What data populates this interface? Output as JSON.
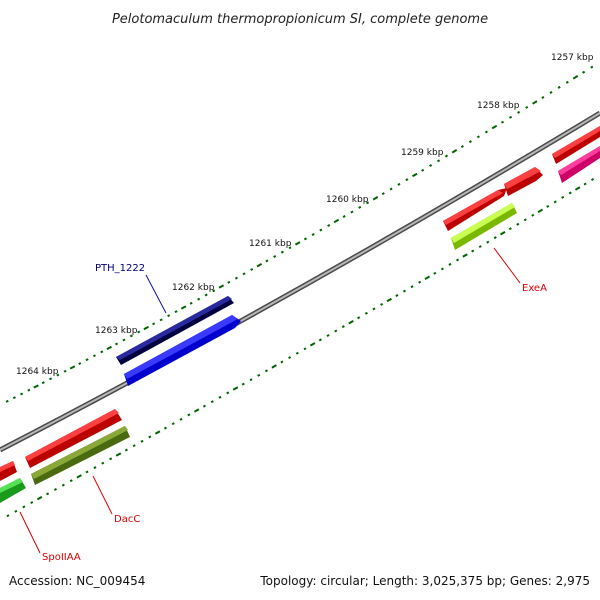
{
  "title": "Pelotomaculum thermopropionicum SI, complete genome",
  "accession": "Accession: NC_009454",
  "summary": "Topology: circular; Length: 3,025,375 bp; Genes: 2,975",
  "scale": {
    "labels": [
      "1257 kbp",
      "1258 kbp",
      "1259 kbp",
      "1260 kbp",
      "1261 kbp",
      "1262 kbp",
      "1263 kbp",
      "1264 kbp"
    ]
  },
  "genes": [
    {
      "label": "PTH_1222",
      "color": "#000080",
      "strand": "+"
    },
    {
      "label": "",
      "color": "#0000ff",
      "strand": "-"
    },
    {
      "label": "",
      "color": "#ff0000",
      "strand": "+"
    },
    {
      "label": "",
      "color": "#ff0000",
      "strand": "+"
    },
    {
      "label": "",
      "color": "#ff0000",
      "strand": "+"
    },
    {
      "label": "",
      "color": "#ff1493",
      "strand": "-"
    },
    {
      "label": "ExeA",
      "color": "#adff2f",
      "strand": "-"
    },
    {
      "label": "",
      "color": "#ff0000",
      "strand": "+"
    },
    {
      "label": "DacC",
      "color": "#6b8e23",
      "strand": "-"
    },
    {
      "label": "",
      "color": "#ff0000",
      "strand": "+"
    },
    {
      "label": "SpoIIAA",
      "color": "#32cd32",
      "strand": "-"
    }
  ],
  "colors": {
    "backbone": "#808080",
    "ticks": "#006400",
    "label_blue": "#000080",
    "label_red": "#dd0000"
  }
}
